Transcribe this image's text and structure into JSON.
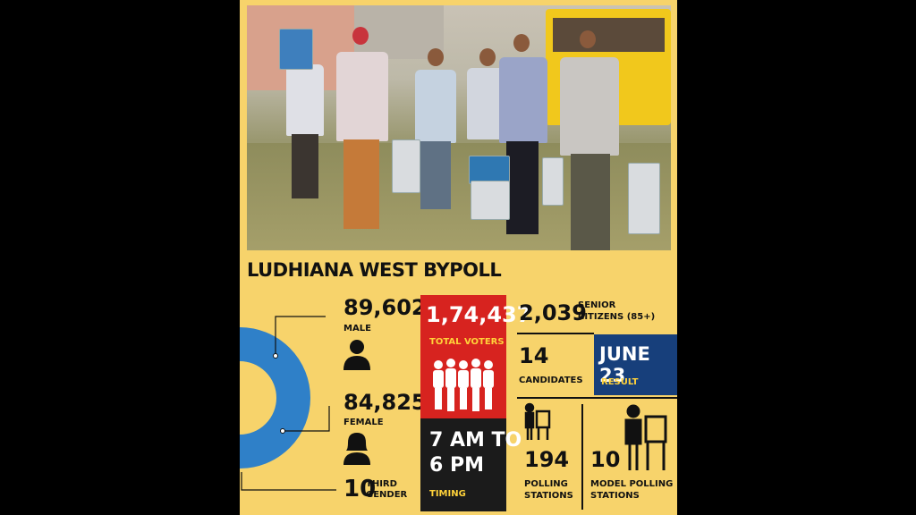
{
  "title": "LUDHIANA WEST BYPOLL",
  "male": {
    "value": "89,602",
    "label": "MALE"
  },
  "female": {
    "value": "84,825",
    "label": "FEMALE"
  },
  "third_gender": {
    "value": "10",
    "label": "THIRD GENDER"
  },
  "total_voters": {
    "value": "1,74,437",
    "label": "TOTAL VOTERS"
  },
  "timing": {
    "line1": "7 AM TO",
    "line2": "6 PM",
    "label": "TIMING"
  },
  "senior_citizens": {
    "value": "2,039",
    "label_line1": "SENIOR",
    "label_line2": "CITIZENS (85+)"
  },
  "candidates": {
    "value": "14",
    "label": "CANDIDATES"
  },
  "result": {
    "date": "JUNE 23",
    "label": "RESULT"
  },
  "polling_stations": {
    "value": "194",
    "label_line1": "POLLING",
    "label_line2": "STATIONS"
  },
  "model_polling_stations": {
    "value": "10",
    "label_line1": "MODEL POLLING",
    "label_line2": "STATIONS"
  },
  "colors": {
    "background": "#f7d36b",
    "red": "#d7231f",
    "blue": "#173f7b",
    "male": "#2f80c8",
    "female": "#e2449a"
  },
  "icons": [
    "male-icon",
    "female-icon",
    "voters-group-icon",
    "polling-booth-icon",
    "model-polling-booth-icon"
  ]
}
